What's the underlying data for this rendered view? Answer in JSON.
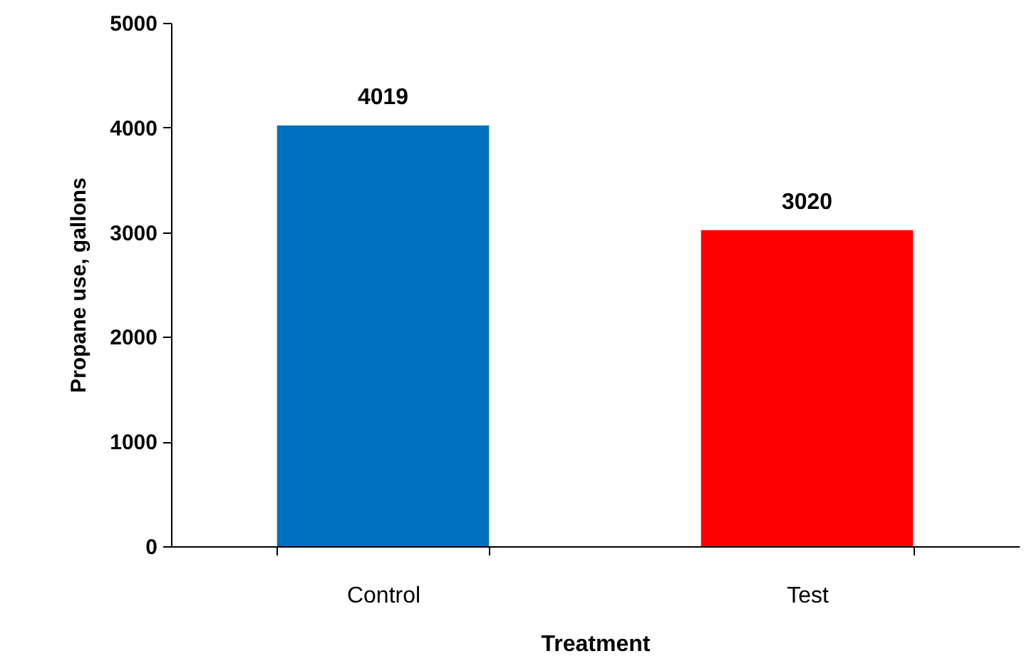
{
  "chart_data": {
    "type": "bar",
    "xlabel": "Treatment",
    "ylabel": "Propane use, gallons",
    "categories": [
      "Control",
      "Test"
    ],
    "values": [
      4019,
      3020
    ],
    "colors": [
      "#0070c0",
      "#ff0000"
    ],
    "ylim": [
      0,
      5000
    ],
    "yticks": [
      0,
      1000,
      2000,
      3000,
      4000,
      5000
    ],
    "grid": false,
    "data_labels": true
  }
}
